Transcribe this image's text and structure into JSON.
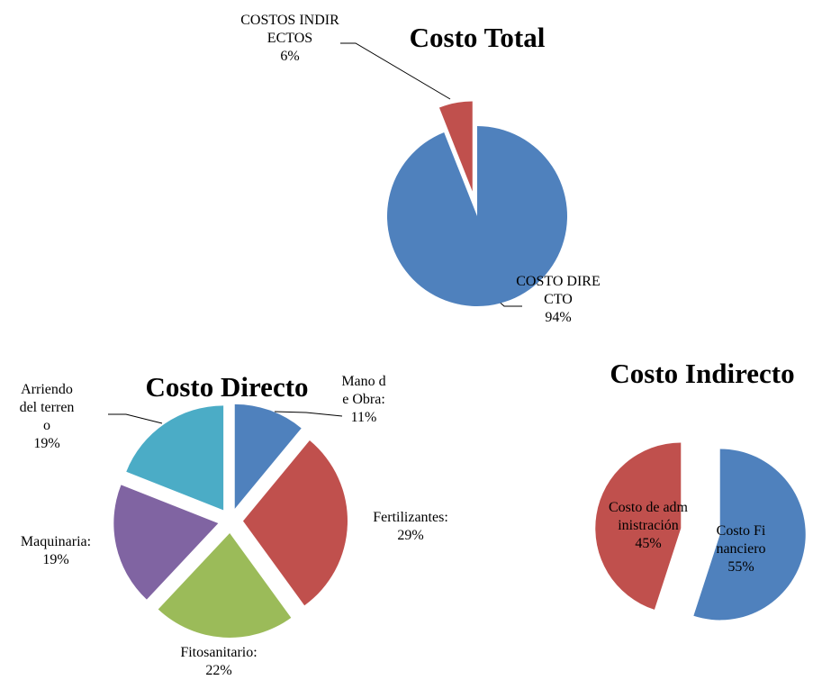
{
  "chart_data": [
    {
      "type": "pie",
      "title": "Costo Total",
      "categories": [
        "COSTO DIRECTO",
        "COSTOS INDIRECTOS"
      ],
      "values": [
        94,
        6
      ],
      "value_labels": [
        "94%",
        "6%"
      ],
      "colors": [
        "#4f81bd",
        "#c0504d"
      ]
    },
    {
      "type": "pie",
      "title": "Costo Directo",
      "categories": [
        "Mano de Obra:",
        "Fertilizantes:",
        "Fitosanitario:",
        "Maquinaria:",
        "Arriendo del terreno"
      ],
      "values": [
        11,
        29,
        22,
        19,
        19
      ],
      "value_labels": [
        "11%",
        "29%",
        "22%",
        "19%",
        "19%"
      ],
      "colors": [
        "#4f81bd",
        "#c0504d",
        "#9bbb59",
        "#8064a2",
        "#4bacc6"
      ]
    },
    {
      "type": "pie",
      "title": "Costo Indirecto",
      "categories": [
        "Costo Financiero",
        "Costo de administración"
      ],
      "values": [
        55,
        45
      ],
      "value_labels": [
        "55%",
        "45%"
      ],
      "colors": [
        "#4f81bd",
        "#c0504d"
      ]
    }
  ]
}
